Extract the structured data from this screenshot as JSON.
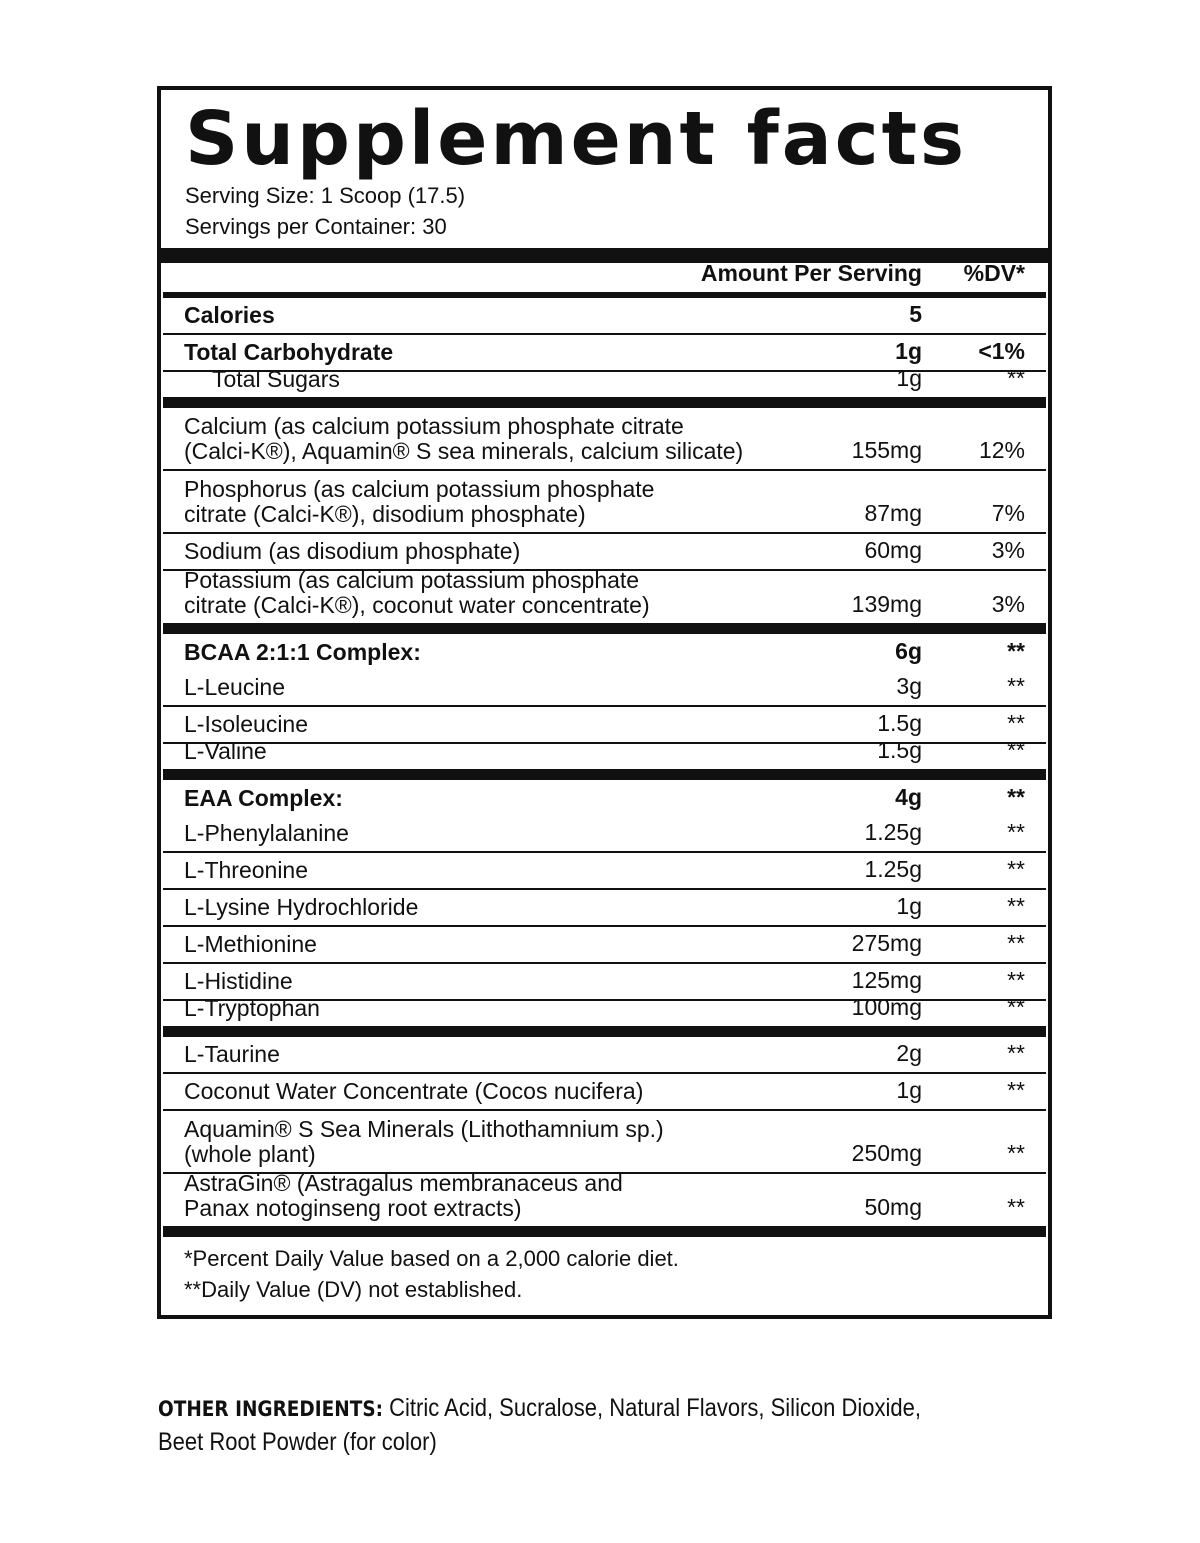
{
  "title": "Supplement facts",
  "serving_size": "Serving Size: 1 Scoop  (17.5)",
  "servings_per_container": "Servings per Container: 30",
  "header": {
    "amount": "Amount Per Serving",
    "dv": "%DV*"
  },
  "rows": [
    {
      "name": "Calories",
      "amount": "5",
      "dv": "",
      "bold": true,
      "sep": "thin"
    },
    {
      "name": "Total Carbohydrate",
      "amount": "1g",
      "dv": "<1%",
      "bold": true,
      "sep": "thin"
    },
    {
      "name": "Total Sugars",
      "amount": "1g",
      "dv": "**",
      "indent": true,
      "sep": "thick"
    },
    {
      "name": "Calcium (as calcium potassium phosphate citrate\n(Calci-K®), Aquamin® S sea minerals, calcium silicate)",
      "amount": "155mg",
      "dv": "12%",
      "lines": 2,
      "sep": "thin"
    },
    {
      "name": "Phosphorus (as calcium potassium phosphate\ncitrate (Calci-K®), disodium phosphate)",
      "amount": "87mg",
      "dv": "7%",
      "lines": 2,
      "sep": "thin"
    },
    {
      "name": "Sodium (as disodium phosphate)",
      "amount": "60mg",
      "dv": "3%",
      "sep": "thin"
    },
    {
      "name": "Potassium (as calcium potassium phosphate\ncitrate (Calci-K®), coconut water concentrate)",
      "amount": "139mg",
      "dv": "3%",
      "lines": 2,
      "sep": "thick"
    },
    {
      "name": "BCAA 2:1:1 Complex:",
      "amount": "6g",
      "dv": "**",
      "bold": true,
      "sep": "none"
    },
    {
      "name": "L-Leucine",
      "amount": "3g",
      "dv": "**",
      "sep": "thin"
    },
    {
      "name": "L-Isoleucine",
      "amount": "1.5g",
      "dv": "**",
      "sep": "thin"
    },
    {
      "name": "L-Valine",
      "amount": "1.5g",
      "dv": "**",
      "sep": "thick"
    },
    {
      "name": "EAA Complex:",
      "amount": "4g",
      "dv": "**",
      "bold": true,
      "sep": "none"
    },
    {
      "name": "L-Phenylalanine",
      "amount": "1.25g",
      "dv": "**",
      "sep": "thin"
    },
    {
      "name": "L-Threonine",
      "amount": "1.25g",
      "dv": "**",
      "sep": "thin"
    },
    {
      "name": "L-Lysine Hydrochloride",
      "amount": "1g",
      "dv": "**",
      "sep": "thin"
    },
    {
      "name": "L-Methionine",
      "amount": "275mg",
      "dv": "**",
      "sep": "thin"
    },
    {
      "name": "L-Histidine",
      "amount": "125mg",
      "dv": "**",
      "sep": "thin"
    },
    {
      "name": "L-Tryptophan",
      "amount": "100mg",
      "dv": "**",
      "sep": "thick"
    },
    {
      "name": "L-Taurine",
      "amount": "2g",
      "dv": "**",
      "sep": "thin"
    },
    {
      "name": "Coconut Water Concentrate (Cocos nucifera)",
      "amount": "1g",
      "dv": "**",
      "sep": "thin"
    },
    {
      "name": "Aquamin® S Sea Minerals (Lithothamnium sp.)\n(whole plant)",
      "amount": "250mg",
      "dv": "**",
      "lines": 2,
      "sep": "thin"
    },
    {
      "name": "AstraGin® (Astragalus membranaceus and\nPanax notoginseng root extracts)",
      "amount": "50mg",
      "dv": "**",
      "lines": 2,
      "sep": "thick"
    }
  ],
  "footnotes": [
    "*Percent Daily Value based on a 2,000 calorie diet.",
    "**Daily Value (DV) not established."
  ],
  "other_ingredients": {
    "label": "OTHER INGREDIENTS:",
    "text": " Citric Acid, Sucralose, Natural Flavors, Silicon Dioxide,",
    "text2": "Beet Root Powder (for color)"
  }
}
